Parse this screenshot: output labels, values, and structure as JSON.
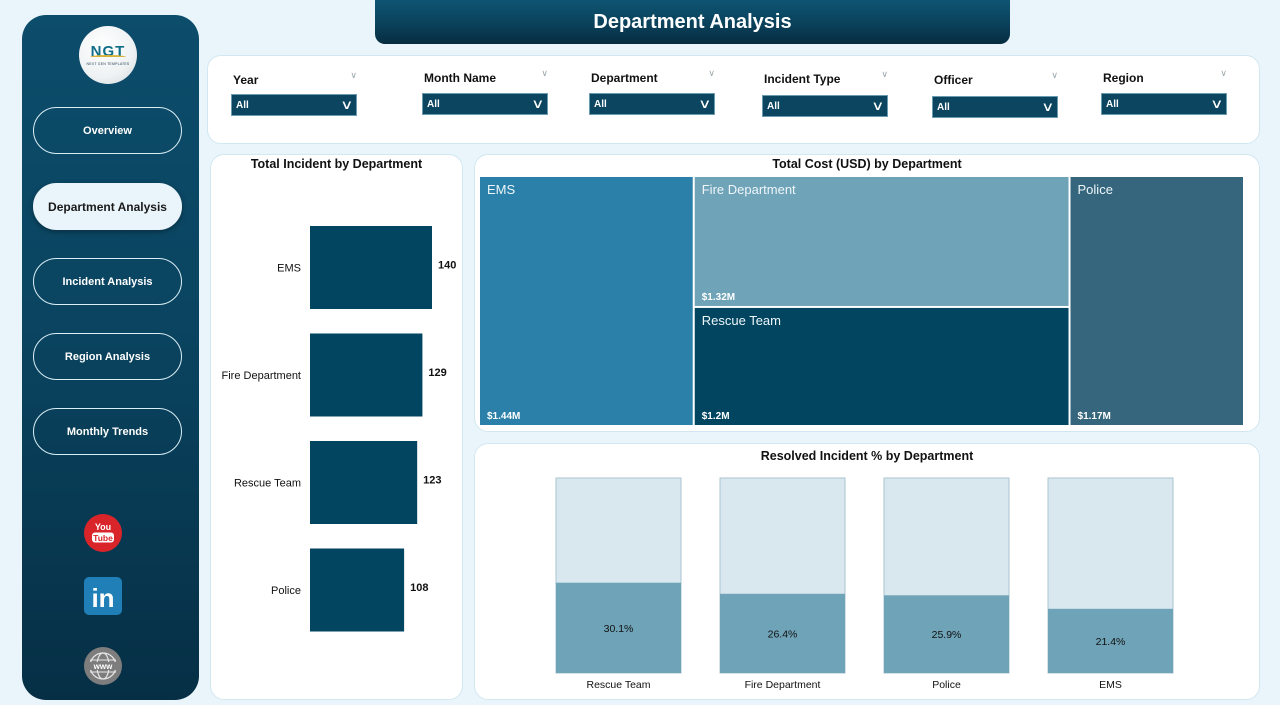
{
  "header": {
    "title": "Department Analysis"
  },
  "sidebar": {
    "logo": {
      "text": "NGT",
      "subtext": "NEXT GEN TEMPLATES"
    },
    "nav": [
      {
        "label": "Overview",
        "active": false
      },
      {
        "label": "Department Analysis",
        "active": true
      },
      {
        "label": "Incident Analysis",
        "active": false
      },
      {
        "label": "Region Analysis",
        "active": false
      },
      {
        "label": "Monthly Trends",
        "active": false
      }
    ],
    "social": [
      {
        "icon": "youtube-icon",
        "text_top": "You",
        "text_bottom": "Tube",
        "color": "#d9252a"
      },
      {
        "icon": "linkedin-icon",
        "text": "in",
        "color": "#1f7fb6"
      },
      {
        "icon": "globe-icon",
        "text": "www",
        "color": "#7d7d7d"
      }
    ]
  },
  "filters": [
    {
      "label": "Year",
      "value": "All"
    },
    {
      "label": "Month Name",
      "value": "All"
    },
    {
      "label": "Department",
      "value": "All"
    },
    {
      "label": "Incident Type",
      "value": "All"
    },
    {
      "label": "Officer",
      "value": "All"
    },
    {
      "label": "Region",
      "value": "All"
    }
  ],
  "colors": {
    "navy": "#024561",
    "treemap": [
      "#2a80a8",
      "#6fa3b7",
      "#024561",
      "#35667d"
    ],
    "resolved_fill": "#6fa3b7",
    "resolved_bg": "#d9e7ee"
  },
  "chart_data": [
    {
      "type": "bar",
      "orientation": "horizontal",
      "title": "Total Incident by Department",
      "categories": [
        "EMS",
        "Fire Department",
        "Rescue Team",
        "Police"
      ],
      "values": [
        140,
        129,
        123,
        108
      ],
      "labels": [
        "140",
        "129",
        "123",
        "108"
      ],
      "xlim": [
        0,
        140
      ]
    },
    {
      "type": "treemap",
      "title": "Total Cost (USD) by Department",
      "categories": [
        "EMS",
        "Fire Department",
        "Rescue Team",
        "Police"
      ],
      "values": [
        1.44,
        1.32,
        1.2,
        1.17
      ],
      "labels": [
        "$1.44M",
        "$1.32M",
        "$1.2M",
        "$1.17M"
      ],
      "unit": "USD millions"
    },
    {
      "type": "bar",
      "orientation": "vertical",
      "title": "Resolved Incident % by Department",
      "categories": [
        "Rescue Team",
        "Fire Department",
        "Police",
        "EMS"
      ],
      "values": [
        30.1,
        26.4,
        25.9,
        21.4
      ],
      "labels": [
        "30.1%",
        "26.4%",
        "25.9%",
        "21.4%"
      ],
      "ylim": [
        0,
        100
      ]
    }
  ]
}
